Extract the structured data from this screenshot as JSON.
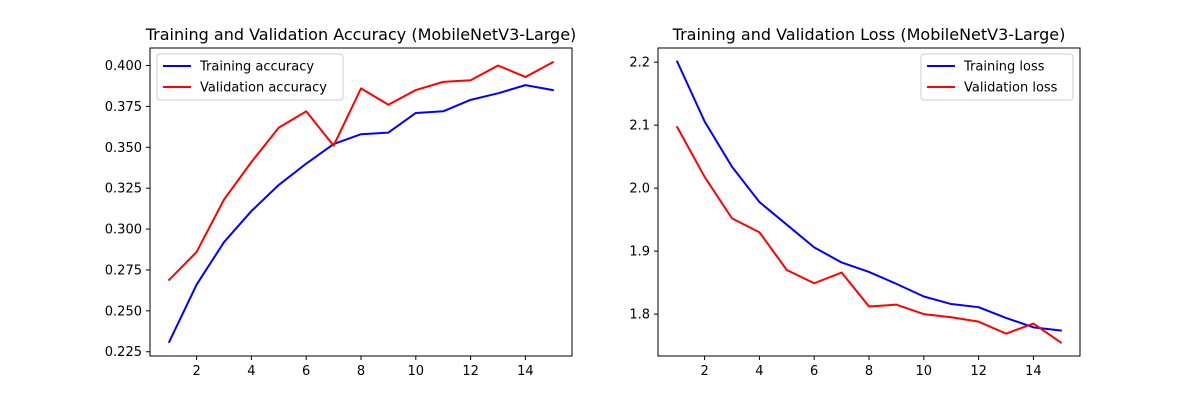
{
  "chart_data": [
    {
      "type": "line",
      "title": "Training and Validation Accuracy (MobileNetV3-Large)",
      "xlabel": "",
      "ylabel": "",
      "x": [
        1,
        2,
        3,
        4,
        5,
        6,
        7,
        8,
        9,
        10,
        11,
        12,
        13,
        14,
        15
      ],
      "xlim": [
        0.3,
        15.7
      ],
      "ylim": [
        0.2224,
        0.4107
      ],
      "xticks": [
        2,
        4,
        6,
        8,
        10,
        12,
        14
      ],
      "yticks": [
        0.225,
        0.25,
        0.275,
        0.3,
        0.325,
        0.35,
        0.375,
        0.4
      ],
      "ytick_labels": [
        "0.225",
        "0.250",
        "0.275",
        "0.300",
        "0.325",
        "0.350",
        "0.375",
        "0.400"
      ],
      "legend": "top-left",
      "grid": false,
      "series": [
        {
          "name": "Training accuracy",
          "color": "#0000ff",
          "values": [
            0.231,
            0.266,
            0.292,
            0.311,
            0.327,
            0.34,
            0.352,
            0.358,
            0.359,
            0.371,
            0.372,
            0.379,
            0.383,
            0.388,
            0.385
          ]
        },
        {
          "name": "Validation accuracy",
          "color": "#ff0000",
          "values": [
            0.269,
            0.286,
            0.318,
            0.341,
            0.362,
            0.372,
            0.351,
            0.386,
            0.376,
            0.385,
            0.39,
            0.391,
            0.4,
            0.393,
            0.402
          ]
        }
      ]
    },
    {
      "type": "line",
      "title": "Training and Validation Loss (MobileNetV3-Large)",
      "xlabel": "",
      "ylabel": "",
      "x": [
        1,
        2,
        3,
        4,
        5,
        6,
        7,
        8,
        9,
        10,
        11,
        12,
        13,
        14,
        15
      ],
      "xlim": [
        0.3,
        15.7
      ],
      "ylim": [
        1.7335,
        2.2225
      ],
      "xticks": [
        2,
        4,
        6,
        8,
        10,
        12,
        14
      ],
      "yticks": [
        1.8,
        1.9,
        2.0,
        2.1,
        2.2
      ],
      "ytick_labels": [
        "1.8",
        "1.9",
        "2.0",
        "2.1",
        "2.2"
      ],
      "legend": "top-right",
      "grid": false,
      "series": [
        {
          "name": "Training loss",
          "color": "#0000ff",
          "values": [
            2.201,
            2.106,
            2.034,
            1.978,
            1.942,
            1.906,
            1.882,
            1.867,
            1.848,
            1.828,
            1.816,
            1.811,
            1.794,
            1.779,
            1.774
          ]
        },
        {
          "name": "Validation loss",
          "color": "#ff0000",
          "values": [
            2.097,
            2.018,
            1.952,
            1.93,
            1.87,
            1.849,
            1.866,
            1.812,
            1.815,
            1.8,
            1.795,
            1.788,
            1.769,
            1.785,
            1.755
          ]
        }
      ]
    }
  ]
}
